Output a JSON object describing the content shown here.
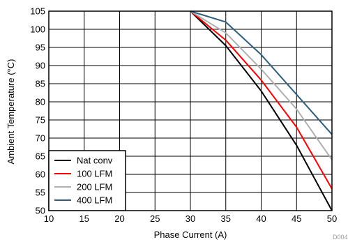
{
  "chart_data": {
    "type": "line",
    "xlabel": "Phase Current (A)",
    "ylabel": "Ambient Temperature (°C)",
    "xlim": [
      10,
      50
    ],
    "ylim": [
      50,
      105
    ],
    "xticks": [
      10,
      15,
      20,
      25,
      30,
      35,
      40,
      45,
      50
    ],
    "yticks": [
      50,
      55,
      60,
      65,
      70,
      75,
      80,
      85,
      90,
      95,
      100,
      105
    ],
    "grid": true,
    "legend_position": "bottom-left",
    "annotation": "D004",
    "series": [
      {
        "name": "Nat conv",
        "color": "#000000",
        "x": [
          30,
          35,
          40,
          45,
          50
        ],
        "y": [
          105,
          95.5,
          83,
          68,
          50
        ]
      },
      {
        "name": "100 LFM",
        "color": "#ff0000",
        "x": [
          30,
          35,
          40,
          45,
          50
        ],
        "y": [
          105,
          97,
          86,
          73,
          56
        ]
      },
      {
        "name": "200 LFM",
        "color": "#b0b0b0",
        "x": [
          30,
          35,
          40,
          45,
          50
        ],
        "y": [
          105,
          99,
          89,
          78,
          64
        ]
      },
      {
        "name": "400 LFM",
        "color": "#2e5d7e",
        "x": [
          30,
          35,
          40,
          45,
          50
        ],
        "y": [
          105,
          102,
          93,
          82,
          71
        ]
      }
    ]
  }
}
